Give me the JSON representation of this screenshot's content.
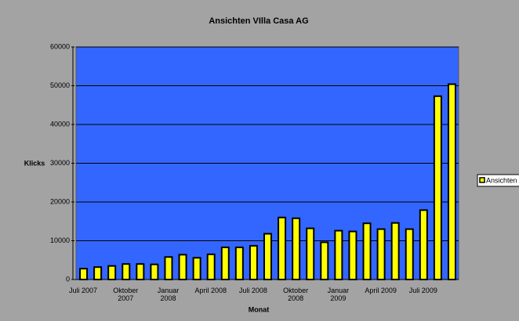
{
  "chart_data": {
    "type": "bar",
    "title": "Ansichten VIlla Casa AG",
    "x_label": "Monat",
    "y_label": "Klicks",
    "categories": [
      "Juli 2007",
      null,
      null,
      "Oktober 2007",
      null,
      null,
      "Januar 2008",
      null,
      null,
      "April 2008",
      null,
      null,
      "Juli 2008",
      null,
      null,
      "Oktober 2008",
      null,
      null,
      "Januar 2009",
      null,
      null,
      "April 2009",
      null,
      null,
      "Juli 2009",
      null,
      null
    ],
    "series": [
      {
        "name": "Ansichten",
        "color": "#ffff00",
        "values": [
          2800,
          3200,
          3500,
          4000,
          4000,
          3900,
          5800,
          6400,
          5600,
          6500,
          8300,
          8300,
          8700,
          11800,
          16000,
          15800,
          13200,
          9600,
          12600,
          12400,
          14500,
          13000,
          14600,
          13000,
          17900,
          47300,
          50400
        ]
      }
    ],
    "ylim": [
      0,
      60000
    ],
    "yticks": [
      0,
      10000,
      20000,
      30000,
      40000,
      50000,
      60000
    ],
    "grid": true,
    "legend": "right"
  }
}
